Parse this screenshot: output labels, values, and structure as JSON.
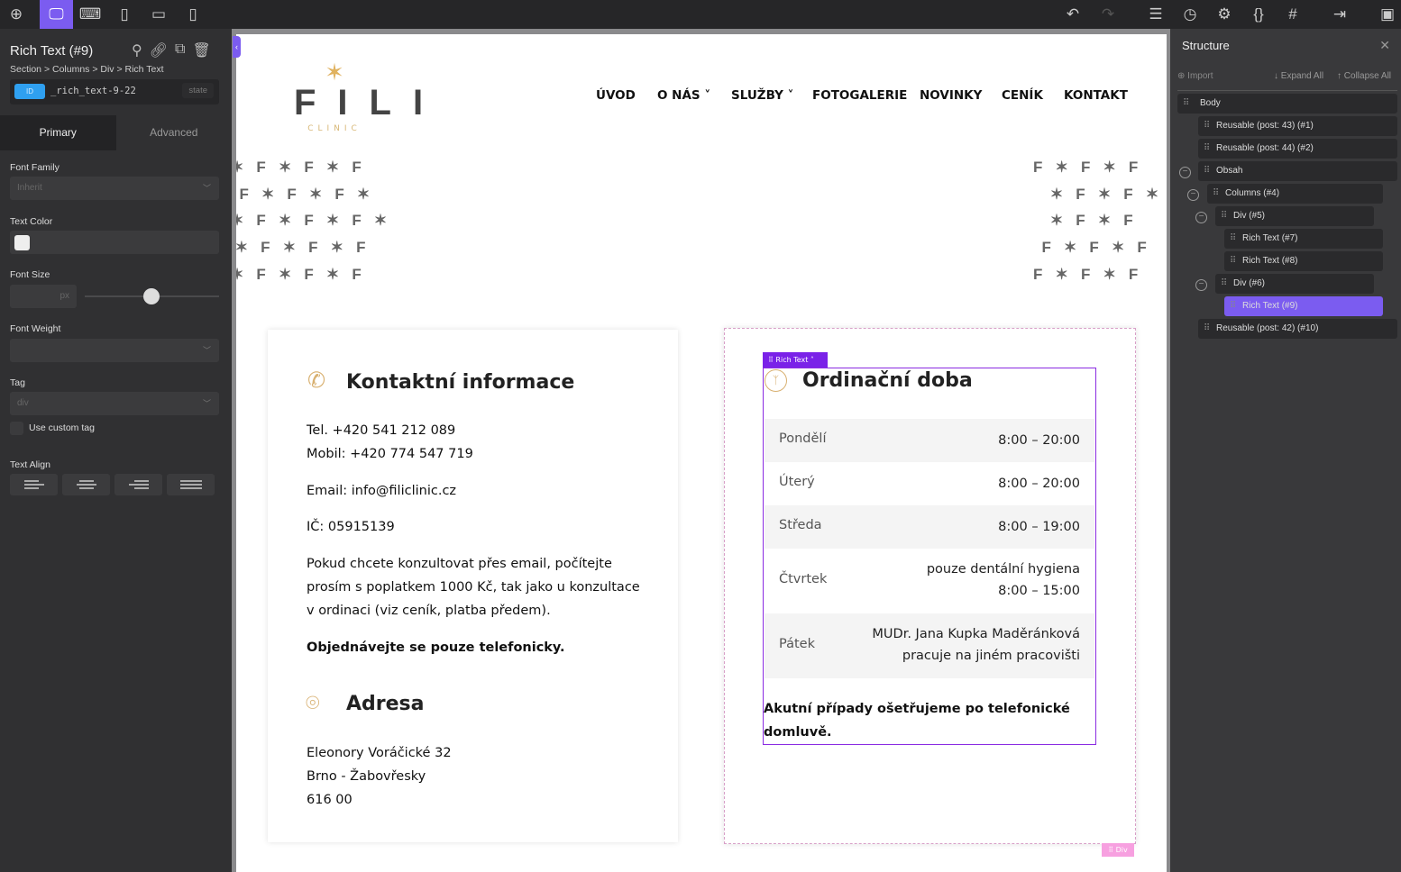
{
  "toolbar": {
    "left_icons": [
      "add-icon",
      "desktop-icon",
      "laptop-icon",
      "tablet-icon",
      "tablet-landscape-icon",
      "mobile-icon"
    ],
    "right_icons": [
      "undo-icon",
      "redo-icon",
      "structure-icon",
      "history-icon",
      "settings-icon",
      "code-icon",
      "grid-icon",
      "exit-icon",
      "save-icon"
    ],
    "accent": "#7b5cf0"
  },
  "panel": {
    "title": "Rich Text (#9)",
    "breadcrumb": "Section > Columns > Div > Rich Text",
    "id_badge": "ID",
    "id_value": "_rich_text-9-22",
    "state_label": "state",
    "tabs": [
      "Primary",
      "Advanced"
    ],
    "font_family_label": "Font Family",
    "font_family_value": "Inherit",
    "text_color_label": "Text Color",
    "text_color": "#eeeeee",
    "font_size_label": "Font Size",
    "font_size_unit": "px",
    "font_size_slider": 0.5,
    "font_weight_label": "Font Weight",
    "tag_label": "Tag",
    "tag_value": "div",
    "custom_tag_label": "Use custom tag",
    "text_align_label": "Text Align"
  },
  "site": {
    "logo_name": "FILI",
    "logo_sub": "CLINIC",
    "nav": [
      "ÚVOD",
      "O NÁS",
      "SLUŽBY",
      "FOTOGALERIE",
      "NOVINKY",
      "CENÍK",
      "KONTAKT"
    ],
    "contact": {
      "title": "Kontaktní informace",
      "tel": "Tel. +420 541 212 089",
      "mobile": "Mobil: +420 774 547 719",
      "email": "Email: info@filiclinic.cz",
      "ic": "IČ: 05915139",
      "note": "Pokud chcete konzultovat přes email, počítejte prosím s poplatkem 1000 Kč, tak jako u konzultace v ordinaci (viz ceník, platba předem).",
      "bold": "Objednávejte se pouze telefonicky.",
      "address_title": "Adresa",
      "address": [
        "Eleonory Voráčické 32",
        "Brno - Žabovřesky",
        "616 00"
      ]
    },
    "hours": {
      "tag": "Rich Text",
      "title": "Ordinační doba",
      "rows": [
        {
          "day": "Pondělí",
          "time": "8:00 – 20:00"
        },
        {
          "day": "Úterý",
          "time": "8:00 – 20:00"
        },
        {
          "day": "Středa",
          "time": "8:00 – 19:00"
        },
        {
          "day": "Čtvrtek",
          "time": "pouze dentální hygiena\n8:00 – 15:00"
        },
        {
          "day": "Pátek",
          "time": "MUDr. Jana Kupka Maděránková\npracuje na jiném pracovišti"
        }
      ],
      "note": "Akutní případy ošetřujeme po telefonické domluvě.",
      "div_tag": "Div"
    }
  },
  "structure": {
    "title": "Structure",
    "import": "Import",
    "expand": "Expand All",
    "collapse": "Collapse All",
    "body": "Body",
    "nodes": [
      "Reusable (post: 43) (#1)",
      "Reusable (post: 44) (#2)",
      "Obsah",
      "Columns (#4)",
      "Div (#5)",
      "Rich Text (#7)",
      "Rich Text (#8)",
      "Div (#6)",
      "Rich Text (#9)",
      "Reusable (post: 42) (#10)"
    ]
  }
}
